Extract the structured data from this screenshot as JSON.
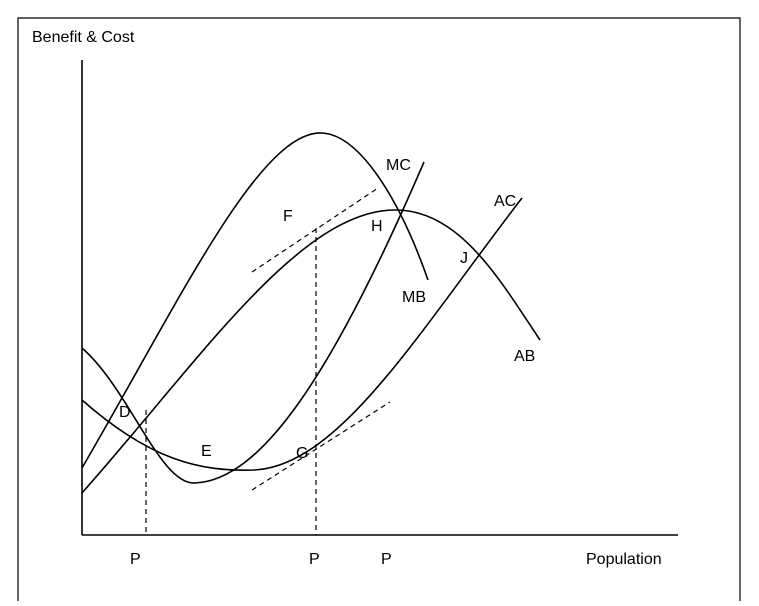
{
  "y_axis_label": "Benefit & Cost",
  "x_axis_label": "Population",
  "curves": [
    {
      "label": "MB"
    },
    {
      "label": "AB"
    },
    {
      "label": "MC"
    },
    {
      "label": "AC"
    }
  ],
  "points": [
    "D",
    "E",
    "F",
    "G",
    "H",
    "J"
  ],
  "x_markers": [
    "P",
    "P",
    "P"
  ]
}
